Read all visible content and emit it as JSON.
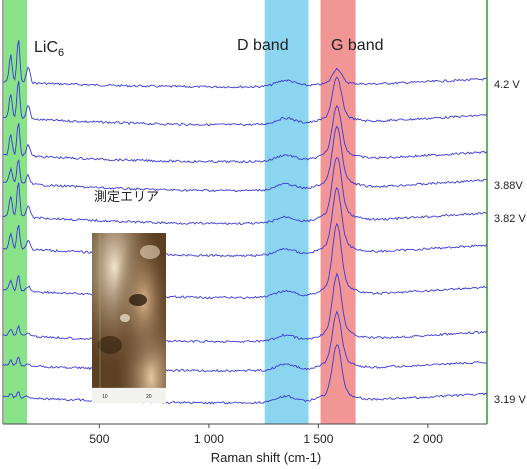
{
  "chart_data": {
    "type": "line",
    "title": "",
    "xlabel": "Raman shift (cm-1)",
    "ylabel": "",
    "xlim": [
      60,
      2270
    ],
    "x_ticks": [
      {
        "value": 500,
        "label": "500"
      },
      {
        "value": 1000,
        "label": "1 000"
      },
      {
        "value": 1500,
        "label": "1 500"
      },
      {
        "value": 2000,
        "label": "2 000"
      }
    ],
    "bands": [
      {
        "name": "LiC6",
        "label_main": "LiC",
        "label_sub": "6",
        "x_range": [
          65,
          170
        ],
        "color": "#7be07b"
      },
      {
        "name": "D band",
        "label_main": "D band",
        "label_sub": "",
        "x_range": [
          1255,
          1455
        ],
        "color": "#7fd0ee"
      },
      {
        "name": "G band",
        "label_main": "G band",
        "label_sub": "",
        "x_range": [
          1510,
          1670
        ],
        "color": "#f08a8a"
      }
    ],
    "series_color": "#3a3ad8",
    "series": [
      {
        "label": "4.2 V",
        "offset": 82,
        "g_height": 14,
        "lic6_height": 45,
        "curve": 7
      },
      {
        "label": "",
        "offset": 118,
        "g_height": 38,
        "lic6_height": 40,
        "curve": 9
      },
      {
        "label": "",
        "offset": 155,
        "g_height": 46,
        "lic6_height": 35,
        "curve": 9
      },
      {
        "label": "3.88V",
        "offset": 183,
        "g_height": 52,
        "lic6_height": 25,
        "curve": 10
      },
      {
        "label": "3.82 V",
        "offset": 216,
        "g_height": 55,
        "lic6_height": 35,
        "curve": 10
      },
      {
        "label": "",
        "offset": 248,
        "g_height": 55,
        "lic6_height": 25,
        "curve": 10
      },
      {
        "label": "",
        "offset": 290,
        "g_height": 60,
        "lic6_height": 15,
        "curve": 10
      },
      {
        "label": "",
        "offset": 335,
        "g_height": 55,
        "lic6_height": 10,
        "curve": 9
      },
      {
        "label": "",
        "offset": 365,
        "g_height": 48,
        "lic6_height": 8,
        "curve": 8
      },
      {
        "label": "3.19 V",
        "offset": 397,
        "g_height": 48,
        "lic6_height": 5,
        "curve": 8
      }
    ],
    "annotations": [
      {
        "text": "測定エリア"
      }
    ],
    "inset": {
      "ticks": [
        "10",
        "20"
      ]
    }
  }
}
